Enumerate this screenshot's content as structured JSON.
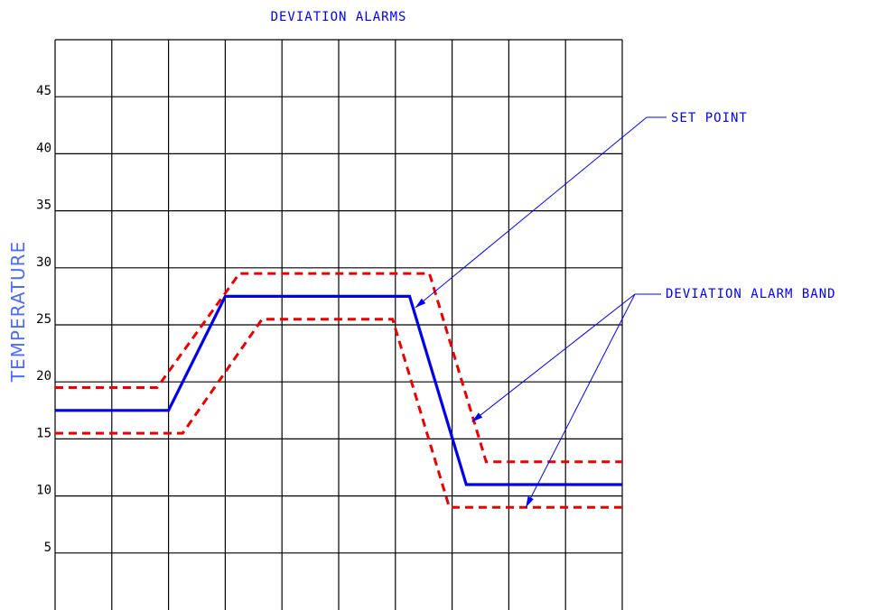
{
  "chart_data": {
    "type": "line",
    "title": "DEVIATION ALARMS",
    "xlabel": "",
    "ylabel": "TEMPERATURE",
    "ylim": [
      0,
      50
    ],
    "xlim": [
      0,
      10
    ],
    "yticks": [
      5,
      10,
      15,
      20,
      25,
      30,
      35,
      40,
      45
    ],
    "grid": true,
    "colors": {
      "set_point": "#0000ee",
      "band": "#ee0000",
      "annotation": "#0000ff",
      "ylabel": "#4a6cff"
    },
    "series": [
      {
        "name": "SET POINT",
        "style": "solid",
        "x": [
          0,
          2,
          3,
          6.25,
          7.25,
          10
        ],
        "y": [
          17.5,
          17.5,
          27.5,
          27.5,
          11,
          11
        ]
      },
      {
        "name": "DEVIATION ALARM BAND",
        "part": "upper",
        "style": "dashed",
        "x": [
          0,
          1.8,
          3.25,
          6.6,
          7.6,
          10
        ],
        "y": [
          19.5,
          19.5,
          29.5,
          29.5,
          13,
          13
        ]
      },
      {
        "name": "DEVIATION ALARM BAND",
        "part": "lower",
        "style": "dashed",
        "x": [
          0,
          2.25,
          3.65,
          5.95,
          6.95,
          10
        ],
        "y": [
          15.5,
          15.5,
          25.5,
          25.5,
          9,
          9
        ]
      }
    ],
    "annotations": [
      {
        "text": "SET POINT",
        "targets": [
          {
            "x": 6.35,
            "y": 26.5
          }
        ]
      },
      {
        "text": "DEVIATION ALARM BAND",
        "targets": [
          {
            "x": 7.35,
            "y": 16.5
          },
          {
            "x": 8.3,
            "y": 9
          }
        ]
      }
    ]
  }
}
